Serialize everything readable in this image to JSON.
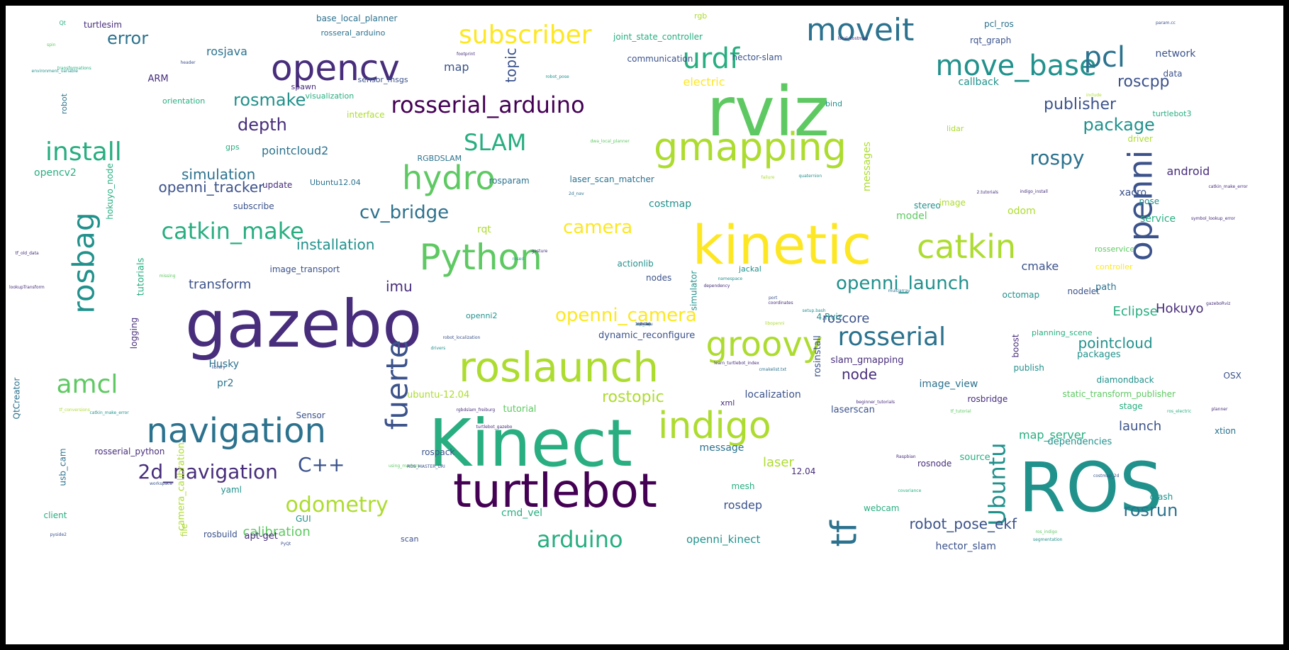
{
  "palette": [
    "#440154",
    "#472d7b",
    "#3b528b",
    "#2c728e",
    "#21918c",
    "#28ae80",
    "#5ec962",
    "#addc30",
    "#fde725"
  ],
  "words": [
    {
      "text": "rviz",
      "size": 96,
      "color": 6
    },
    {
      "text": "gazebo",
      "size": 92,
      "color": 1
    },
    {
      "text": "Kinect",
      "size": 92,
      "color": 5
    },
    {
      "text": "ROS",
      "size": 96,
      "color": 4
    },
    {
      "text": "kinetic",
      "size": 76,
      "color": 8
    },
    {
      "text": "turtlebot",
      "size": 66,
      "color": 0
    },
    {
      "text": "roslaunch",
      "size": 58,
      "color": 7
    },
    {
      "text": "Python",
      "size": 50,
      "color": 6
    },
    {
      "text": "gmapping",
      "size": 54,
      "color": 7
    },
    {
      "text": "indigo",
      "size": 52,
      "color": 7
    },
    {
      "text": "navigation",
      "size": 48,
      "color": 3
    },
    {
      "text": "opencv",
      "size": 50,
      "color": 1
    },
    {
      "text": "moveit",
      "size": 44,
      "color": 3
    },
    {
      "text": "groovy",
      "size": 48,
      "color": 7
    },
    {
      "text": "hydro",
      "size": 46,
      "color": 6
    },
    {
      "text": "catkin",
      "size": 46,
      "color": 7
    },
    {
      "text": "openni",
      "size": 46,
      "color": 2,
      "rotate": true
    },
    {
      "text": "rosbag",
      "size": 42,
      "color": 4,
      "rotate": true
    },
    {
      "text": "tf",
      "size": 50,
      "color": 3,
      "rotate": true
    },
    {
      "text": "fuerte",
      "size": 42,
      "color": 2,
      "rotate": true
    },
    {
      "text": "move_base",
      "size": 40,
      "color": 4
    },
    {
      "text": "urdf",
      "size": 40,
      "color": 5
    },
    {
      "text": "pcl",
      "size": 40,
      "color": 3
    },
    {
      "text": "subscriber",
      "size": 36,
      "color": 8
    },
    {
      "text": "rosserial",
      "size": 36,
      "color": 3
    },
    {
      "text": "rosserial_arduino",
      "size": 32,
      "color": 0
    },
    {
      "text": "catkin_make",
      "size": 32,
      "color": 5
    },
    {
      "text": "install",
      "size": 36,
      "color": 5
    },
    {
      "text": "amcl",
      "size": 36,
      "color": 6
    },
    {
      "text": "SLAM",
      "size": 32,
      "color": 5
    },
    {
      "text": "arduino",
      "size": 32,
      "color": 5
    },
    {
      "text": "odometry",
      "size": 30,
      "color": 7
    },
    {
      "text": "2d_navigation",
      "size": 28,
      "color": 1
    },
    {
      "text": "Ubuntu",
      "size": 32,
      "color": 4,
      "rotate": true
    },
    {
      "text": "C++",
      "size": 28,
      "color": 2
    },
    {
      "text": "openni_launch",
      "size": 26,
      "color": 4
    },
    {
      "text": "openni_camera",
      "size": 26,
      "color": 8
    },
    {
      "text": "cv_bridge",
      "size": 26,
      "color": 3
    },
    {
      "text": "rospy",
      "size": 28,
      "color": 3
    },
    {
      "text": "camera",
      "size": 26,
      "color": 8
    },
    {
      "text": "rostopic",
      "size": 22,
      "color": 7
    },
    {
      "text": "rosrun",
      "size": 24,
      "color": 3
    },
    {
      "text": "roscpp",
      "size": 22,
      "color": 2
    },
    {
      "text": "publisher",
      "size": 22,
      "color": 2
    },
    {
      "text": "package",
      "size": 24,
      "color": 4
    },
    {
      "text": "pointcloud",
      "size": 20,
      "color": 4
    },
    {
      "text": "robot_pose_ekf",
      "size": 20,
      "color": 2
    },
    {
      "text": "error",
      "size": 24,
      "color": 3
    },
    {
      "text": "rosmake",
      "size": 24,
      "color": 4
    },
    {
      "text": "depth",
      "size": 24,
      "color": 1
    },
    {
      "text": "simulation",
      "size": 20,
      "color": 3
    },
    {
      "text": "openni_tracker",
      "size": 20,
      "color": 2
    },
    {
      "text": "installation",
      "size": 20,
      "color": 4
    },
    {
      "text": "topic",
      "size": 20,
      "color": 2,
      "rotate": true
    },
    {
      "text": "imu",
      "size": 20,
      "color": 1
    },
    {
      "text": "transform",
      "size": 18,
      "color": 2
    },
    {
      "text": "calibration",
      "size": 18,
      "color": 6
    },
    {
      "text": "Eclipse",
      "size": 18,
      "color": 5
    },
    {
      "text": "Hokuyo",
      "size": 18,
      "color": 1
    },
    {
      "text": "launch",
      "size": 18,
      "color": 2
    },
    {
      "text": "roscore",
      "size": 18,
      "color": 2
    },
    {
      "text": "node",
      "size": 20,
      "color": 1
    },
    {
      "text": "laser",
      "size": 18,
      "color": 7
    },
    {
      "text": "rosdep",
      "size": 16,
      "color": 2
    },
    {
      "text": "map_server",
      "size": 16,
      "color": 5
    },
    {
      "text": "cmake",
      "size": 16,
      "color": 2
    },
    {
      "text": "android",
      "size": 16,
      "color": 1
    },
    {
      "text": "rosjava",
      "size": 16,
      "color": 3
    },
    {
      "text": "pointcloud2",
      "size": 16,
      "color": 3
    },
    {
      "text": "costmap",
      "size": 14,
      "color": 4
    },
    {
      "text": "xacro",
      "size": 14,
      "color": 2
    },
    {
      "text": "model",
      "size": 14,
      "color": 6
    },
    {
      "text": "map",
      "size": 16,
      "color": 2
    },
    {
      "text": "Husky",
      "size": 14,
      "color": 3
    },
    {
      "text": "pr2",
      "size": 14,
      "color": 3
    },
    {
      "text": "rqt",
      "size": 14,
      "color": 7
    },
    {
      "text": "odom",
      "size": 14,
      "color": 7
    },
    {
      "text": "network",
      "size": 14,
      "color": 2
    },
    {
      "text": "callback",
      "size": 14,
      "color": 4
    },
    {
      "text": "electric",
      "size": 16,
      "color": 8
    },
    {
      "text": "messages",
      "size": 14,
      "color": 7,
      "rotate": true
    },
    {
      "text": "camera_calibration",
      "size": 13,
      "color": 7,
      "rotate": true
    },
    {
      "text": "logging",
      "size": 12,
      "color": 1,
      "rotate": true
    },
    {
      "text": "tutorials",
      "size": 13,
      "color": 5,
      "rotate": true
    },
    {
      "text": "robot",
      "size": 11,
      "color": 3,
      "rotate": true
    },
    {
      "text": "hokuyo_node",
      "size": 12,
      "color": 5,
      "rotate": true
    },
    {
      "text": "usb_cam",
      "size": 12,
      "color": 3,
      "rotate": true
    },
    {
      "text": "simulator",
      "size": 12,
      "color": 4,
      "rotate": true
    },
    {
      "text": "rosinstall",
      "size": 13,
      "color": 2,
      "rotate": true
    },
    {
      "text": "boost",
      "size": 12,
      "color": 1,
      "rotate": true
    },
    {
      "text": "QtCreator",
      "size": 12,
      "color": 3,
      "rotate": true
    },
    {
      "text": "file",
      "size": 12,
      "color": 7,
      "rotate": true
    },
    {
      "text": "opencv2",
      "size": 14,
      "color": 5
    },
    {
      "text": "image_view",
      "size": 14,
      "color": 3
    },
    {
      "text": "slam_gmapping",
      "size": 13,
      "color": 1
    },
    {
      "text": "dynamic_reconfigure",
      "size": 13,
      "color": 2
    },
    {
      "text": "localization",
      "size": 14,
      "color": 2
    },
    {
      "text": "laserscan",
      "size": 13,
      "color": 2
    },
    {
      "text": "tutorial",
      "size": 13,
      "color": 6
    },
    {
      "text": "ubuntu-12.04",
      "size": 13,
      "color": 7
    },
    {
      "text": "message",
      "size": 14,
      "color": 3
    },
    {
      "text": "cmd_vel",
      "size": 14,
      "color": 5
    },
    {
      "text": "openni_kinect",
      "size": 15,
      "color": 4
    },
    {
      "text": "hector_slam",
      "size": 14,
      "color": 2
    },
    {
      "text": "apt-get",
      "size": 13,
      "color": 1
    },
    {
      "text": "rosbuild",
      "size": 12,
      "color": 2
    },
    {
      "text": "GUI",
      "size": 12,
      "color": 4
    },
    {
      "text": "yaml",
      "size": 12,
      "color": 4
    },
    {
      "text": "rosserial_python",
      "size": 12,
      "color": 1
    },
    {
      "text": "client",
      "size": 12,
      "color": 5
    },
    {
      "text": "Sensor",
      "size": 12,
      "color": 2
    },
    {
      "text": "rospack",
      "size": 12,
      "color": 2
    },
    {
      "text": "mesh",
      "size": 12,
      "color": 5
    },
    {
      "text": "webcam",
      "size": 12,
      "color": 5
    },
    {
      "text": "scan",
      "size": 11,
      "color": 2
    },
    {
      "text": "rosnode",
      "size": 12,
      "color": 1
    },
    {
      "text": "source",
      "size": 13,
      "color": 5
    },
    {
      "text": "12.04",
      "size": 12,
      "color": 1
    },
    {
      "text": "dependencies",
      "size": 13,
      "color": 4
    },
    {
      "text": "xtion",
      "size": 12,
      "color": 3
    },
    {
      "text": "crash",
      "size": 12,
      "color": 4
    },
    {
      "text": "stage",
      "size": 12,
      "color": 5
    },
    {
      "text": "static_transform_publisher",
      "size": 12,
      "color": 6
    },
    {
      "text": "rosbridge",
      "size": 12,
      "color": 1
    },
    {
      "text": "diamondback",
      "size": 12,
      "color": 4
    },
    {
      "text": "OSX",
      "size": 12,
      "color": 2
    },
    {
      "text": "packages",
      "size": 13,
      "color": 4
    },
    {
      "text": "publish",
      "size": 12,
      "color": 4
    },
    {
      "text": "planning_scene",
      "size": 11,
      "color": 5
    },
    {
      "text": "xml",
      "size": 11,
      "color": 1
    },
    {
      "text": "path",
      "size": 13,
      "color": 3
    },
    {
      "text": "nodelet",
      "size": 12,
      "color": 2
    },
    {
      "text": "octomap",
      "size": 12,
      "color": 4
    },
    {
      "text": "4.Rviz",
      "size": 12,
      "color": 4
    },
    {
      "text": "actionlib",
      "size": 12,
      "color": 4
    },
    {
      "text": "nodes",
      "size": 12,
      "color": 2
    },
    {
      "text": "jackal",
      "size": 11,
      "color": 4
    },
    {
      "text": "controller",
      "size": 11,
      "color": 8
    },
    {
      "text": "rosservice",
      "size": 11,
      "color": 6
    },
    {
      "text": "service",
      "size": 14,
      "color": 5
    },
    {
      "text": "pose",
      "size": 12,
      "color": 4
    },
    {
      "text": "stereo",
      "size": 12,
      "color": 4
    },
    {
      "text": "image",
      "size": 12,
      "color": 7
    },
    {
      "text": "laser_scan_matcher",
      "size": 12,
      "color": 3
    },
    {
      "text": "rosparam",
      "size": 12,
      "color": 3
    },
    {
      "text": "update",
      "size": 12,
      "color": 1
    },
    {
      "text": "subscribe",
      "size": 12,
      "color": 2
    },
    {
      "text": "Ubuntu12.04",
      "size": 11,
      "color": 3
    },
    {
      "text": "RGBDSLAM",
      "size": 11,
      "color": 3
    },
    {
      "text": "gps",
      "size": 11,
      "color": 5
    },
    {
      "text": "lidar",
      "size": 11,
      "color": 7
    },
    {
      "text": "driver",
      "size": 12,
      "color": 7
    },
    {
      "text": "turtlebot3",
      "size": 11,
      "color": 5
    },
    {
      "text": "data",
      "size": 12,
      "color": 2
    },
    {
      "text": "bind",
      "size": 11,
      "color": 4
    },
    {
      "text": "orientation",
      "size": 11,
      "color": 5
    },
    {
      "text": "interface",
      "size": 12,
      "color": 7
    },
    {
      "text": "visualization",
      "size": 11,
      "color": 5
    },
    {
      "text": "spawn",
      "size": 11,
      "color": 1
    },
    {
      "text": "sensor_msgs",
      "size": 11,
      "color": 2
    },
    {
      "text": "ARM",
      "size": 13,
      "color": 1
    },
    {
      "text": "rosseral_arduino",
      "size": 11,
      "color": 3
    },
    {
      "text": "base_local_planner",
      "size": 12,
      "color": 3
    },
    {
      "text": "joint_state_controller",
      "size": 12,
      "color": 5
    },
    {
      "text": "communication",
      "size": 12,
      "color": 2
    },
    {
      "text": "hector-slam",
      "size": 12,
      "color": 2
    },
    {
      "text": "pcl_ros",
      "size": 12,
      "color": 3
    },
    {
      "text": "rqt_graph",
      "size": 12,
      "color": 2
    },
    {
      "text": "image_transport",
      "size": 12,
      "color": 2
    },
    {
      "text": "openni2",
      "size": 11,
      "color": 4
    },
    {
      "text": "turtlesim",
      "size": 12,
      "color": 1
    },
    {
      "text": "rgb",
      "size": 11,
      "color": 7
    },
    {
      "text": "param.cc",
      "size": 6,
      "color": 2
    },
    {
      "text": "local_costmap",
      "size": 6,
      "color": 1
    },
    {
      "text": "footprint",
      "size": 6,
      "color": 1
    },
    {
      "text": "transformations",
      "size": 6,
      "color": 5
    },
    {
      "text": "header",
      "size": 6,
      "color": 2
    },
    {
      "text": "robot_pose",
      "size": 6,
      "color": 4
    },
    {
      "text": "environment_variable",
      "size": 6,
      "color": 4
    },
    {
      "text": "include",
      "size": 6,
      "color": 7
    },
    {
      "text": "2d_nav",
      "size": 6,
      "color": 3
    },
    {
      "text": "dwa_local_planner",
      "size": 6,
      "color": 6
    },
    {
      "text": "quaternion",
      "size": 6,
      "color": 4
    },
    {
      "text": "failure",
      "size": 6,
      "color": 7
    },
    {
      "text": "dependency",
      "size": 6,
      "color": 1
    },
    {
      "text": "rosed",
      "size": 6,
      "color": 4
    },
    {
      "text": "gesture",
      "size": 6,
      "color": 1
    },
    {
      "text": "missing",
      "size": 6,
      "color": 6
    },
    {
      "text": "namespace",
      "size": 6,
      "color": 4
    },
    {
      "text": "coordinates",
      "size": 6,
      "color": 1
    },
    {
      "text": "libopenni",
      "size": 6,
      "color": 7
    },
    {
      "text": "drivers",
      "size": 6,
      "color": 4
    },
    {
      "text": "library",
      "size": 6,
      "color": 2
    },
    {
      "text": "learn_turtlebot_index",
      "size": 6,
      "color": 1
    },
    {
      "text": "cmakelist.txt",
      "size": 6,
      "color": 3
    },
    {
      "text": "turtlebot_gazebo",
      "size": 6,
      "color": 1
    },
    {
      "text": "using_markers",
      "size": 6,
      "color": 6
    },
    {
      "text": "rgbdslam_freiburg",
      "size": 6,
      "color": 1
    },
    {
      "text": "catkin_make_error",
      "size": 6,
      "color": 4
    },
    {
      "text": "tf_conversions",
      "size": 6,
      "color": 7
    },
    {
      "text": "ros_electric",
      "size": 6,
      "color": 5
    },
    {
      "text": "planner",
      "size": 6,
      "color": 1
    },
    {
      "text": "tf_tutorial",
      "size": 6,
      "color": 6
    },
    {
      "text": "beginner_tutorials",
      "size": 6,
      "color": 1
    },
    {
      "text": "Raspbian",
      "size": 6,
      "color": 1
    },
    {
      "text": "costmap_2d",
      "size": 6,
      "color": 2
    },
    {
      "text": "PyQt",
      "size": 6,
      "color": 2
    },
    {
      "text": "pyside2",
      "size": 6,
      "color": 2
    },
    {
      "text": "workspace",
      "size": 6,
      "color": 2
    },
    {
      "text": "covariance",
      "size": 6,
      "color": 5
    },
    {
      "text": "ros_indigo",
      "size": 6,
      "color": 6
    },
    {
      "text": "segmentation",
      "size": 6,
      "color": 4
    },
    {
      "text": "tf_old_data",
      "size": 6,
      "color": 1
    },
    {
      "text": "lookupTransform",
      "size": 6,
      "color": 1
    },
    {
      "text": "ROS_MASTER_URI",
      "size": 6,
      "color": 2
    },
    {
      "text": "robot_localization",
      "size": 6,
      "color": 2
    },
    {
      "text": "multiarray",
      "size": 6,
      "color": 3
    },
    {
      "text": "gazeboRviz",
      "size": 6,
      "color": 1
    },
    {
      "text": "catkin_make_error",
      "size": 6,
      "color": 1
    },
    {
      "text": "symbol_lookup_error",
      "size": 6,
      "color": 1
    },
    {
      "text": "indigo_install",
      "size": 6,
      "color": 1
    },
    {
      "text": "2.tutorials",
      "size": 6,
      "color": 1
    },
    {
      "text": "setup.bash",
      "size": 6,
      "color": 4
    },
    {
      "text": "port",
      "size": 6,
      "color": 2
    },
    {
      "text": "Qt",
      "size": 8,
      "color": 5
    },
    {
      "text": "spin",
      "size": 6,
      "color": 6
    },
    {
      "text": "rqt_tap",
      "size": 6,
      "color": 5
    },
    {
      "text": "cmake",
      "size": 6,
      "color": 4
    },
    {
      "text": "1ubuntu",
      "size": 6,
      "color": 2
    },
    {
      "text": "rvman",
      "size": 6,
      "color": 1
    }
  ]
}
